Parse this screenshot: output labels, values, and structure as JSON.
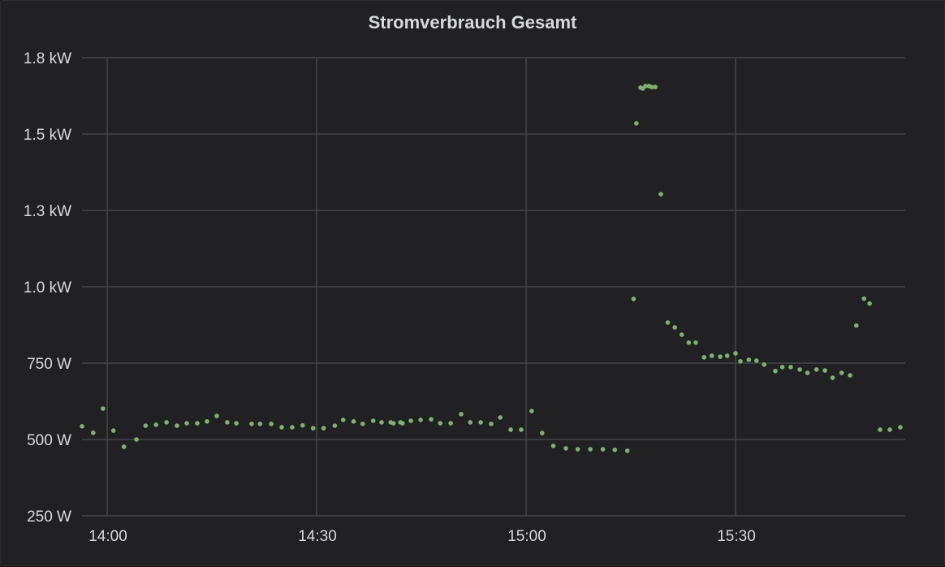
{
  "panel": {
    "title": "Stromverbrauch Gesamt"
  },
  "colors": {
    "background": "#212124",
    "grid": "#464649",
    "point": "#7eb26d",
    "text": "#d8d9da"
  },
  "chart_data": {
    "type": "scatter",
    "title": "Stromverbrauch Gesamt",
    "xlabel": "",
    "ylabel": "",
    "y_ticks": [
      {
        "value": 250,
        "label": "250 W"
      },
      {
        "value": 500,
        "label": "500 W"
      },
      {
        "value": 750,
        "label": "750 W"
      },
      {
        "value": 1000,
        "label": "1.0 kW"
      },
      {
        "value": 1250,
        "label": "1.3 kW"
      },
      {
        "value": 1500,
        "label": "1.5 kW"
      },
      {
        "value": 1750,
        "label": "1.8 kW"
      }
    ],
    "x_ticks": [
      {
        "minute": 0,
        "label": "14:00"
      },
      {
        "minute": 30,
        "label": "14:30"
      },
      {
        "minute": 60,
        "label": "15:00"
      },
      {
        "minute": 90,
        "label": "15:30"
      }
    ],
    "ylim": [
      250,
      1750
    ],
    "xlim_minutes_from_1400": [
      -4,
      114
    ],
    "grid": true,
    "legend": null,
    "series": [
      {
        "name": "Stromverbrauch Gesamt",
        "points_minutes_watts": [
          [
            -3.6,
            543
          ],
          [
            -2.0,
            522
          ],
          [
            -0.6,
            601
          ],
          [
            0.9,
            529
          ],
          [
            2.4,
            476
          ],
          [
            4.2,
            500
          ],
          [
            5.5,
            545
          ],
          [
            7.0,
            548
          ],
          [
            8.5,
            556
          ],
          [
            10.0,
            545
          ],
          [
            11.4,
            553
          ],
          [
            12.9,
            553
          ],
          [
            14.3,
            559
          ],
          [
            15.7,
            577
          ],
          [
            17.2,
            556
          ],
          [
            18.5,
            553
          ],
          [
            20.7,
            551
          ],
          [
            21.9,
            551
          ],
          [
            23.5,
            551
          ],
          [
            25.0,
            540
          ],
          [
            26.5,
            540
          ],
          [
            28.0,
            546
          ],
          [
            29.5,
            537
          ],
          [
            31.0,
            537
          ],
          [
            32.6,
            545
          ],
          [
            33.8,
            564
          ],
          [
            35.3,
            559
          ],
          [
            36.6,
            551
          ],
          [
            38.1,
            561
          ],
          [
            39.3,
            556
          ],
          [
            41.0,
            553
          ],
          [
            42.3,
            553
          ],
          [
            40.6,
            556
          ],
          [
            42.0,
            556
          ],
          [
            43.5,
            561
          ],
          [
            44.9,
            564
          ],
          [
            46.4,
            566
          ],
          [
            47.7,
            553
          ],
          [
            49.2,
            553
          ],
          [
            50.7,
            583
          ],
          [
            52.0,
            556
          ],
          [
            53.5,
            556
          ],
          [
            55.0,
            551
          ],
          [
            56.3,
            572
          ],
          [
            57.8,
            532
          ],
          [
            59.3,
            532
          ],
          [
            60.8,
            593
          ],
          [
            62.3,
            521
          ],
          [
            63.9,
            479
          ],
          [
            65.7,
            471
          ],
          [
            67.4,
            468
          ],
          [
            69.2,
            468
          ],
          [
            71.0,
            468
          ],
          [
            72.7,
            466
          ],
          [
            74.5,
            463
          ],
          [
            75.4,
            960
          ],
          [
            75.8,
            1535
          ],
          [
            76.4,
            1652
          ],
          [
            76.7,
            1649
          ],
          [
            77.1,
            1657
          ],
          [
            77.6,
            1657
          ],
          [
            78.0,
            1654
          ],
          [
            78.5,
            1654
          ],
          [
            79.3,
            1303
          ],
          [
            80.3,
            883
          ],
          [
            81.3,
            867
          ],
          [
            82.3,
            843
          ],
          [
            83.3,
            817
          ],
          [
            84.3,
            817
          ],
          [
            85.5,
            769
          ],
          [
            86.6,
            774
          ],
          [
            87.8,
            771
          ],
          [
            88.8,
            774
          ],
          [
            90.0,
            782
          ],
          [
            90.7,
            756
          ],
          [
            91.9,
            761
          ],
          [
            93.0,
            758
          ],
          [
            94.1,
            745
          ],
          [
            95.7,
            724
          ],
          [
            96.7,
            737
          ],
          [
            97.9,
            737
          ],
          [
            99.2,
            729
          ],
          [
            100.3,
            718
          ],
          [
            101.6,
            729
          ],
          [
            102.8,
            726
          ],
          [
            103.9,
            702
          ],
          [
            105.2,
            718
          ],
          [
            106.4,
            710
          ],
          [
            107.3,
            873
          ],
          [
            108.4,
            961
          ],
          [
            109.2,
            945
          ],
          [
            110.7,
            532
          ],
          [
            112.1,
            532
          ],
          [
            113.6,
            540
          ]
        ]
      }
    ]
  }
}
